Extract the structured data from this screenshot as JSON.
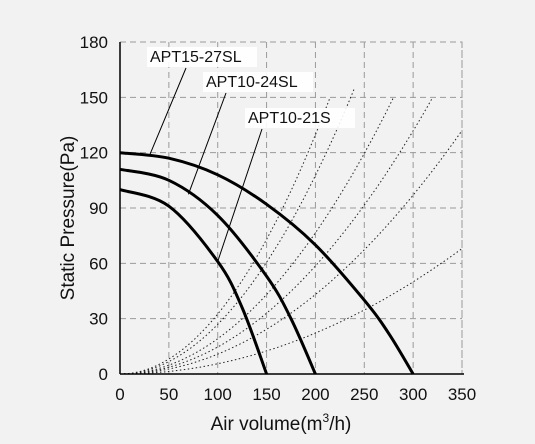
{
  "chart_data": {
    "type": "line",
    "title": "",
    "xlabel": "Air volume(m³/h)",
    "xlabel_main": "Air volume(m",
    "xlabel_sup": "3",
    "xlabel_tail": "/h)",
    "ylabel": "Static Pressure(Pa)",
    "xlim": [
      0,
      350
    ],
    "ylim": [
      0,
      180
    ],
    "xticks": [
      "0",
      "50",
      "100",
      "150",
      "200",
      "250",
      "300",
      "350"
    ],
    "yticks": [
      "0",
      "30",
      "60",
      "90",
      "120",
      "150",
      "180"
    ],
    "grid": true,
    "series": [
      {
        "name": "APT15-27SL",
        "x": [
          0,
          50,
          100,
          150,
          200,
          250,
          275,
          300
        ],
        "y": [
          120,
          117,
          108,
          92,
          70,
          40,
          22,
          0
        ]
      },
      {
        "name": "APT10-24SL",
        "x": [
          0,
          50,
          100,
          150,
          175,
          200
        ],
        "y": [
          111,
          105,
          86,
          53,
          30,
          0
        ]
      },
      {
        "name": "APT10-21S",
        "x": [
          0,
          50,
          100,
          125,
          150
        ],
        "y": [
          100,
          91,
          61,
          36,
          0
        ]
      }
    ],
    "system_curves": [
      {
        "y_at_x350": 68
      },
      {
        "y_at_x350": 132
      },
      {
        "y_at_x320": 150
      },
      {
        "y_at_x280": 150
      },
      {
        "y_at_x240": 155
      },
      {
        "y_at_x215": 150
      }
    ]
  }
}
